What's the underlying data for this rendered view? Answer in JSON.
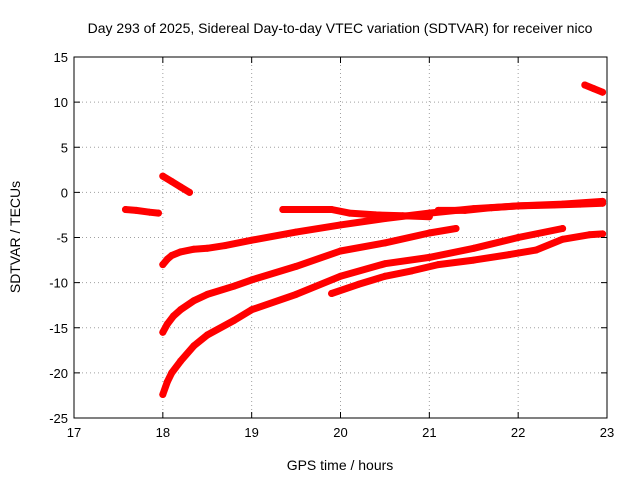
{
  "chart_data": {
    "type": "scatter",
    "title": "Day 293 of 2025, Sidereal Day-to-day VTEC variation (SDTVAR) for receiver nico",
    "xlabel": "GPS time / hours",
    "ylabel": "SDTVAR / TECUs",
    "xlim": [
      17,
      23
    ],
    "ylim": [
      -25,
      15
    ],
    "xticks": [
      17,
      18,
      19,
      20,
      21,
      22,
      23
    ],
    "xtick_labels": [
      "17",
      "18",
      "19",
      "20",
      "21",
      "22",
      "23"
    ],
    "yticks": [
      -25,
      -20,
      -15,
      -10,
      -5,
      0,
      5,
      10,
      15
    ],
    "ytick_labels": [
      "-25",
      "-20",
      "-15",
      "-10",
      "-5",
      "0",
      "5",
      "10",
      "15"
    ],
    "grid": true,
    "marker_color": "#ff0000",
    "series": [
      {
        "name": "track-1",
        "points": [
          [
            17.58,
            -1.9
          ],
          [
            17.7,
            -2.0
          ],
          [
            17.85,
            -2.2
          ],
          [
            17.95,
            -2.3
          ]
        ]
      },
      {
        "name": "track-2",
        "points": [
          [
            18.0,
            1.8
          ],
          [
            18.1,
            1.2
          ],
          [
            18.2,
            0.6
          ],
          [
            18.3,
            0.0
          ]
        ]
      },
      {
        "name": "track-3",
        "points": [
          [
            18.0,
            -8.0
          ],
          [
            18.05,
            -7.4
          ],
          [
            18.1,
            -7.0
          ],
          [
            18.2,
            -6.6
          ],
          [
            18.35,
            -6.3
          ],
          [
            18.5,
            -6.2
          ],
          [
            18.7,
            -5.9
          ],
          [
            19.0,
            -5.3
          ],
          [
            19.5,
            -4.4
          ],
          [
            20.0,
            -3.6
          ],
          [
            20.5,
            -2.9
          ],
          [
            21.0,
            -2.3
          ],
          [
            21.5,
            -1.8
          ],
          [
            22.0,
            -1.5
          ],
          [
            22.5,
            -1.3
          ],
          [
            22.95,
            -1.0
          ]
        ]
      },
      {
        "name": "track-4",
        "points": [
          [
            18.0,
            -15.5
          ],
          [
            18.05,
            -14.6
          ],
          [
            18.12,
            -13.7
          ],
          [
            18.2,
            -13.0
          ],
          [
            18.35,
            -12.0
          ],
          [
            18.5,
            -11.3
          ],
          [
            18.8,
            -10.4
          ],
          [
            19.0,
            -9.7
          ],
          [
            19.5,
            -8.2
          ],
          [
            20.0,
            -6.5
          ],
          [
            20.5,
            -5.6
          ],
          [
            21.0,
            -4.5
          ],
          [
            21.3,
            -4.0
          ]
        ]
      },
      {
        "name": "track-5",
        "points": [
          [
            18.0,
            -22.4
          ],
          [
            18.05,
            -21.0
          ],
          [
            18.1,
            -20.0
          ],
          [
            18.2,
            -18.7
          ],
          [
            18.35,
            -17.0
          ],
          [
            18.5,
            -15.8
          ],
          [
            18.8,
            -14.2
          ],
          [
            19.0,
            -13.0
          ],
          [
            19.5,
            -11.3
          ],
          [
            20.0,
            -9.3
          ],
          [
            20.5,
            -7.9
          ],
          [
            21.0,
            -7.2
          ],
          [
            21.5,
            -6.2
          ],
          [
            22.0,
            -5.0
          ],
          [
            22.5,
            -4.0
          ]
        ]
      },
      {
        "name": "track-6",
        "points": [
          [
            19.35,
            -1.9
          ],
          [
            19.6,
            -1.9
          ],
          [
            19.9,
            -1.9
          ],
          [
            20.1,
            -2.3
          ],
          [
            20.4,
            -2.5
          ],
          [
            20.7,
            -2.6
          ],
          [
            21.0,
            -2.7
          ]
        ]
      },
      {
        "name": "track-7",
        "points": [
          [
            21.1,
            -2.0
          ],
          [
            21.4,
            -2.0
          ],
          [
            21.7,
            -1.7
          ],
          [
            22.0,
            -1.5
          ],
          [
            22.4,
            -1.4
          ],
          [
            22.7,
            -1.3
          ],
          [
            22.95,
            -1.2
          ]
        ]
      },
      {
        "name": "track-8",
        "points": [
          [
            19.9,
            -11.2
          ],
          [
            20.2,
            -10.2
          ],
          [
            20.5,
            -9.3
          ],
          [
            20.8,
            -8.7
          ],
          [
            21.1,
            -8.0
          ],
          [
            21.5,
            -7.5
          ],
          [
            21.9,
            -6.9
          ],
          [
            22.2,
            -6.4
          ],
          [
            22.5,
            -5.2
          ],
          [
            22.8,
            -4.7
          ],
          [
            22.95,
            -4.6
          ]
        ]
      },
      {
        "name": "track-9",
        "points": [
          [
            22.75,
            11.9
          ],
          [
            22.85,
            11.5
          ],
          [
            22.95,
            11.1
          ]
        ]
      }
    ]
  }
}
